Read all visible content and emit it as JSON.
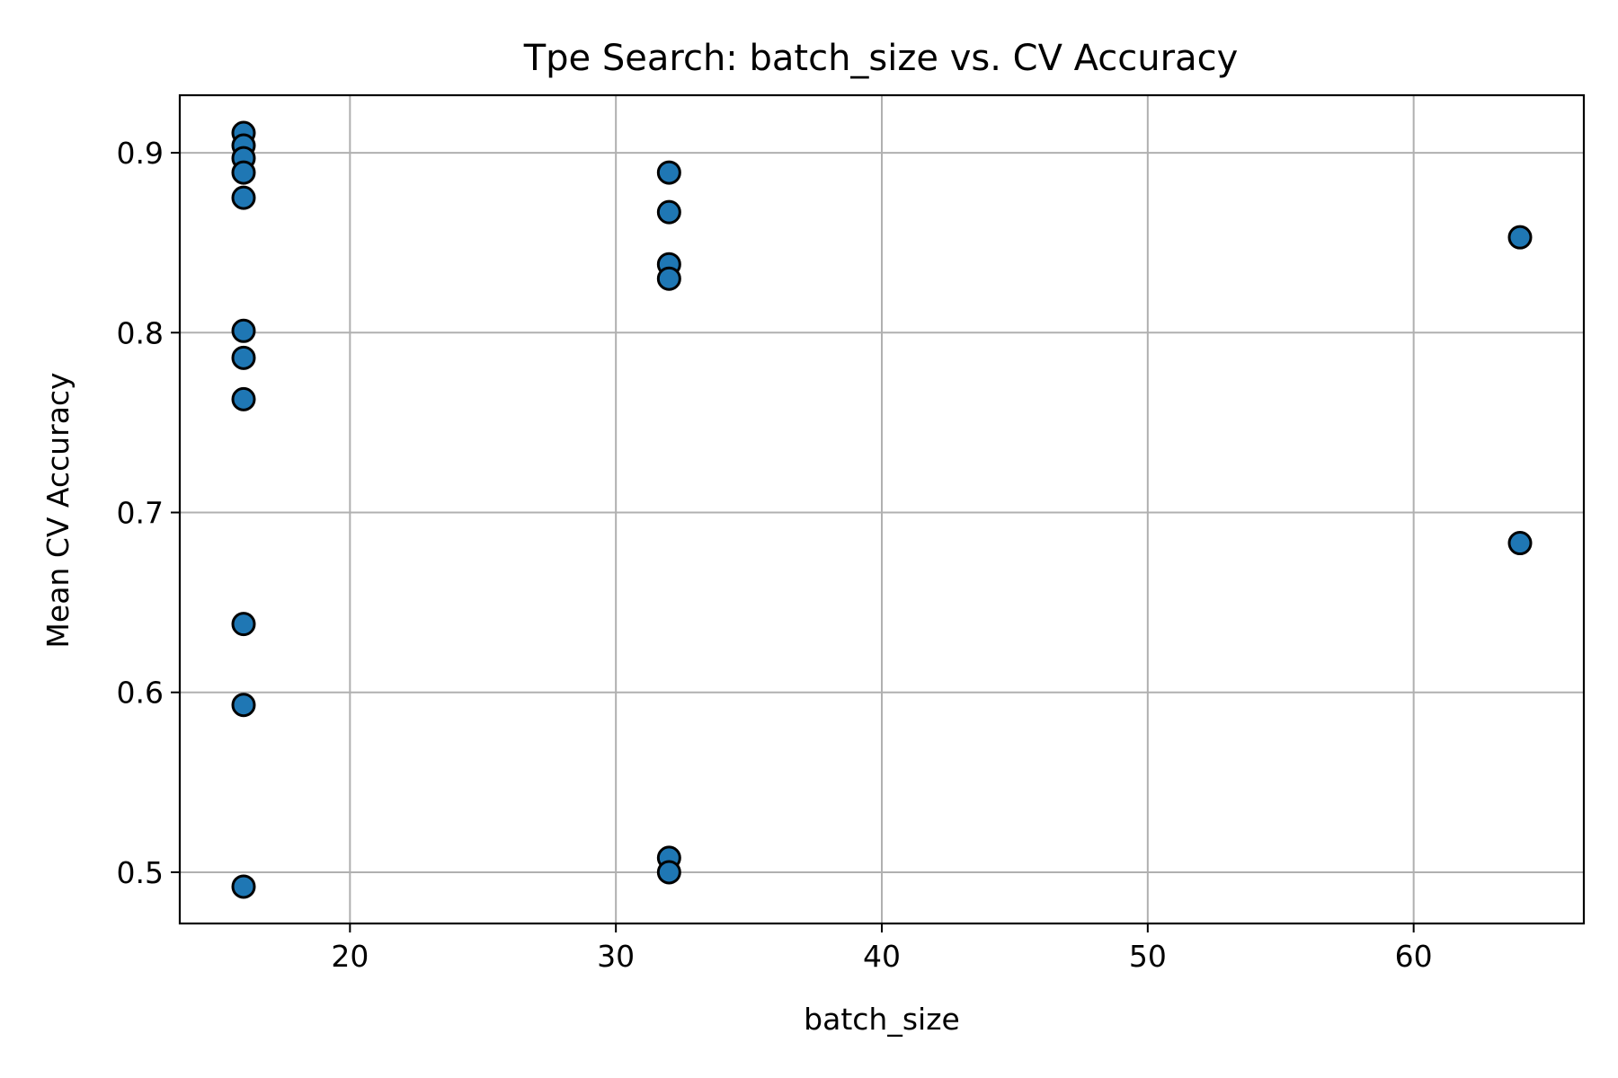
{
  "chart_data": {
    "type": "scatter",
    "title": "Tpe Search: batch_size vs. CV Accuracy",
    "xlabel": "batch_size",
    "ylabel": "Mean CV Accuracy",
    "xlim": [
      13.6,
      66.4
    ],
    "ylim": [
      0.4715,
      0.932
    ],
    "xticks": [
      20,
      30,
      40,
      50,
      60
    ],
    "yticks": [
      0.5,
      0.6,
      0.7,
      0.8,
      0.9
    ],
    "xtick_labels": [
      "20",
      "30",
      "40",
      "50",
      "60"
    ],
    "ytick_labels": [
      "0.5",
      "0.6",
      "0.7",
      "0.8",
      "0.9"
    ],
    "grid": true,
    "marker_color": "#1f77b4",
    "marker_edge_color": "#000000",
    "points": [
      {
        "x": 16,
        "y": 0.911
      },
      {
        "x": 16,
        "y": 0.904
      },
      {
        "x": 16,
        "y": 0.897
      },
      {
        "x": 16,
        "y": 0.889
      },
      {
        "x": 16,
        "y": 0.875
      },
      {
        "x": 16,
        "y": 0.801
      },
      {
        "x": 16,
        "y": 0.786
      },
      {
        "x": 16,
        "y": 0.763
      },
      {
        "x": 16,
        "y": 0.638
      },
      {
        "x": 16,
        "y": 0.593
      },
      {
        "x": 16,
        "y": 0.492
      },
      {
        "x": 32,
        "y": 0.889
      },
      {
        "x": 32,
        "y": 0.867
      },
      {
        "x": 32,
        "y": 0.838
      },
      {
        "x": 32,
        "y": 0.83
      },
      {
        "x": 32,
        "y": 0.508
      },
      {
        "x": 32,
        "y": 0.5
      },
      {
        "x": 64,
        "y": 0.853
      },
      {
        "x": 64,
        "y": 0.683
      }
    ]
  }
}
